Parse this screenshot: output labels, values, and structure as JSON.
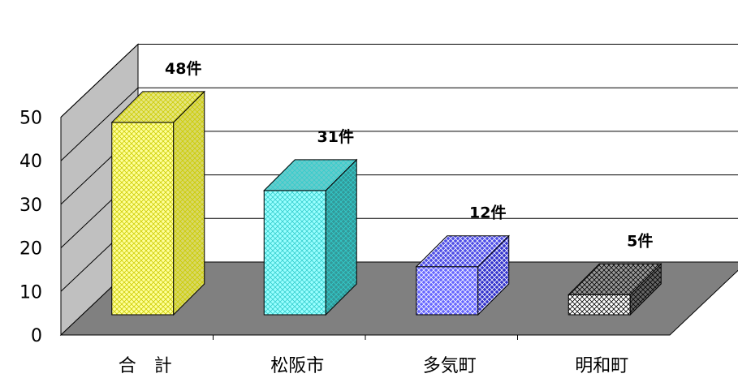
{
  "chart_data": {
    "type": "bar",
    "title": "",
    "xlabel": "",
    "ylabel": "",
    "categories": [
      "合　計",
      "松阪市",
      "多気町",
      "明和町"
    ],
    "values": [
      48,
      31,
      12,
      5
    ],
    "data_labels": [
      "48件",
      "31件",
      "12件",
      "5件"
    ],
    "ylim": [
      0,
      50
    ],
    "yticks": [
      0,
      10,
      20,
      30,
      40,
      50
    ],
    "grid": true,
    "legend": "none",
    "style": "3d-column",
    "colors": {
      "front": [
        "#ffff99",
        "#99ffff",
        "#6666ff",
        "#ffffff"
      ],
      "side": [
        "#d8d866",
        "#339999",
        "#3333cc",
        "#666666"
      ],
      "top": [
        "#e6e680",
        "#66cccc",
        "#4d4de6",
        "#999999"
      ],
      "pattern": [
        "#cccc00",
        "#33cccc",
        "#ffffff",
        "#000000"
      ],
      "floor": "#808080",
      "wall": "#ffffff",
      "side_wall": "#c0c0c0"
    }
  }
}
